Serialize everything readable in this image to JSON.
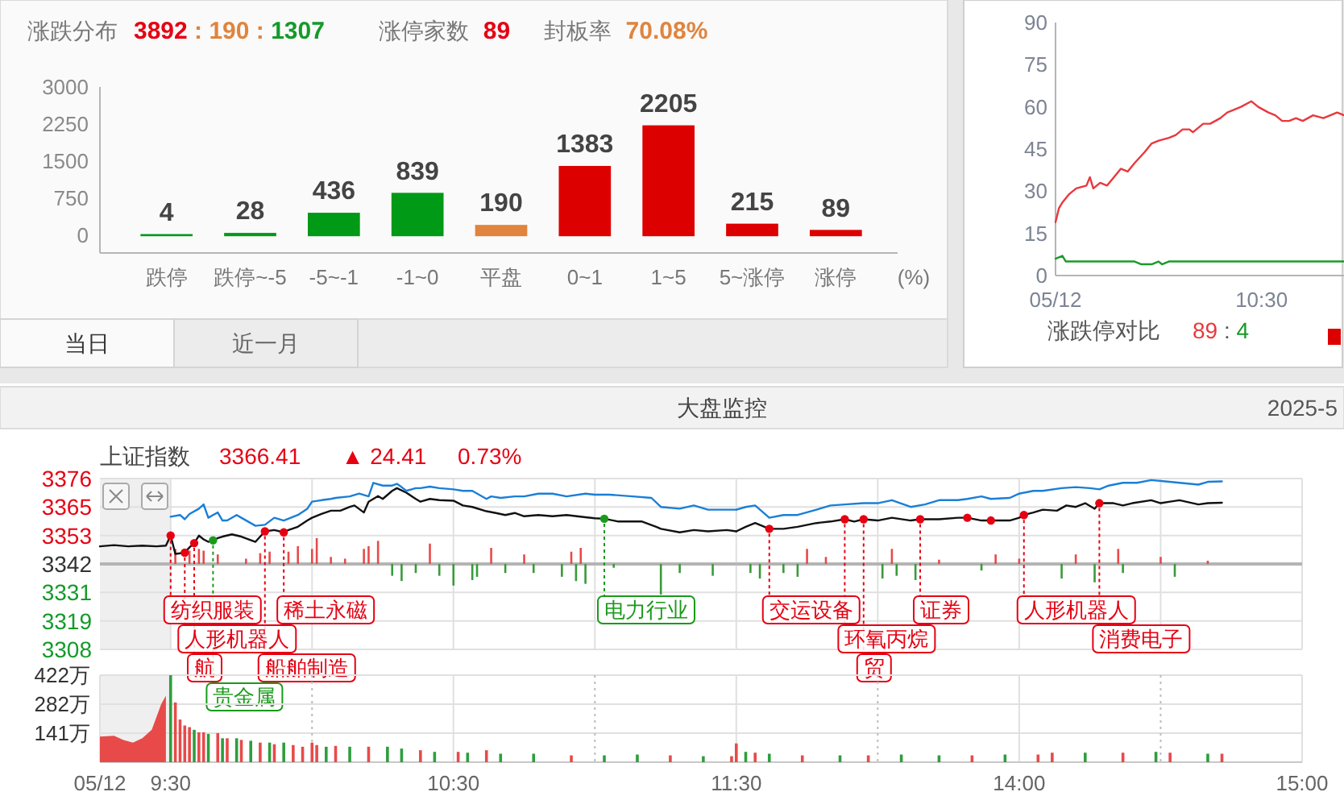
{
  "chart_data": [
    {
      "type": "bar",
      "title": "涨跌分布",
      "subtitle": "3892 : 190 : 1307",
      "annotations": [
        "涨停家数",
        "89",
        "封板率",
        "70.08%"
      ],
      "xlabel": "(%)",
      "categories": [
        "跌停",
        "跌停~-5",
        "-5~-1",
        "-1~0",
        "平盘",
        "0~1",
        "1~5",
        "5~涨停",
        "涨停"
      ],
      "values": [
        4,
        28,
        436,
        839,
        190,
        1383,
        2205,
        215,
        89
      ],
      "colors": [
        "#009a17",
        "#009a17",
        "#009a17",
        "#009a17",
        "#e0843e",
        "#dd0000",
        "#dd0000",
        "#dd0000",
        "#dd0000"
      ],
      "ylim": [
        0,
        3000
      ],
      "yticks": [
        0,
        750,
        1500,
        2250,
        3000
      ],
      "data_labels": true
    },
    {
      "type": "line",
      "title": "涨跌停对比",
      "annotations": [
        "89 : 4"
      ],
      "xlim": [
        "2025-05-12T09:30",
        "2025-05-12T10:54"
      ],
      "xticks": [
        {
          "value": "2025-05-12T09:30",
          "label": "05/12"
        },
        {
          "value": "2025-05-12T10:30",
          "label": "10:30"
        }
      ],
      "ylim": [
        0,
        90
      ],
      "yticks": [
        0,
        15,
        30,
        45,
        60,
        75,
        90
      ],
      "series": [
        {
          "color": "#e8383d",
          "x": [
            "2025-05-12T09:30",
            "2025-05-12T09:31",
            "2025-05-12T09:32",
            "2025-05-12T09:34",
            "2025-05-12T09:36",
            "2025-05-12T09:39",
            "2025-05-12T09:40",
            "2025-05-12T09:41",
            "2025-05-12T09:43",
            "2025-05-12T09:45",
            "2025-05-12T09:47",
            "2025-05-12T09:49",
            "2025-05-12T09:51",
            "2025-05-12T09:53",
            "2025-05-12T09:56",
            "2025-05-12T09:58",
            "2025-05-12T10:00",
            "2025-05-12T10:03",
            "2025-05-12T10:05",
            "2025-05-12T10:07",
            "2025-05-12T10:09",
            "2025-05-12T10:10",
            "2025-05-12T10:13",
            "2025-05-12T10:15",
            "2025-05-12T10:18",
            "2025-05-12T10:20",
            "2025-05-12T10:22",
            "2025-05-12T10:24",
            "2025-05-12T10:27",
            "2025-05-12T10:29",
            "2025-05-12T10:32",
            "2025-05-12T10:34",
            "2025-05-12T10:36",
            "2025-05-12T10:38",
            "2025-05-12T10:40",
            "2025-05-12T10:42",
            "2025-05-12T10:45",
            "2025-05-12T10:48",
            "2025-05-12T10:50",
            "2025-05-12T10:52",
            "2025-05-12T10:54"
          ],
          "values": [
            19,
            24,
            26,
            29,
            31,
            32,
            35,
            31,
            33,
            32,
            35,
            38,
            37,
            40,
            44,
            47,
            48,
            49,
            50,
            52,
            52,
            51,
            54,
            54,
            56,
            58,
            59,
            60,
            62,
            60,
            58,
            57,
            55,
            55,
            56,
            55,
            57,
            56,
            57,
            58,
            57
          ]
        },
        {
          "color": "#1a9a2a",
          "x": [
            "2025-05-12T09:30",
            "2025-05-12T09:32",
            "2025-05-12T09:33",
            "2025-05-12T09:53",
            "2025-05-12T09:55",
            "2025-05-12T09:58",
            "2025-05-12T10:00",
            "2025-05-12T10:01",
            "2025-05-12T10:03",
            "2025-05-12T10:54"
          ],
          "values": [
            6,
            7,
            5,
            5,
            4,
            4,
            5,
            4,
            5,
            5
          ]
        }
      ]
    },
    {
      "type": "other",
      "annotations": [
        "当日",
        "近一月"
      ]
    },
    {
      "type": "line",
      "title": "大盘监控",
      "subtitle": "上证指数",
      "annotations": [
        "3366.41",
        "▲ 24.41",
        "0.73%",
        "2025-5",
        {
          "text": "纺织服装",
          "x": "2025-05-12T09:30",
          "y": 3353.3
        },
        {
          "text": "人形机器人",
          "x": "2025-05-12T09:33",
          "y": 3346.5
        },
        {
          "text": "航",
          "x": "2025-05-12T09:35",
          "y": 3350.3
        },
        {
          "text": "贵金属",
          "x": "2025-05-12T09:39",
          "y": 3351.4
        },
        {
          "text": "船舶制造",
          "x": "2025-05-12T09:50",
          "y": 3355
        },
        {
          "text": "稀土永磁",
          "x": "2025-05-12T09:54",
          "y": 3354.6
        },
        {
          "text": "电力行业",
          "x": "2025-05-12T11:02",
          "y": 3360
        }
      ],
      "xlim": [
        "2025-05-12T09:15",
        "2025-05-12T11:30"
      ],
      "xticks": [
        "2025-05-12T09:30",
        "2025-05-12T10:00",
        "2025-05-12T10:30",
        "2025-05-12T11:00",
        "2025-05-12T11:30"
      ],
      "ylim": [
        3308,
        3376
      ],
      "yticks": [
        3376,
        {
          "value": 3364.67,
          "label": "3365"
        },
        {
          "value": 3353.33,
          "label": "3353"
        },
        3342,
        {
          "value": 3330.67,
          "label": "3331"
        },
        {
          "value": 3319.33,
          "label": "3319"
        },
        3308
      ],
      "grid": true,
      "tick_labels": "y",
      "ref_lines": [
        {
          "axis": "y",
          "value": 3342,
          "color": "#b4b4b4"
        }
      ],
      "bands": [
        {
          "axis": "x",
          "from": "2025-05-12T09:15",
          "to": "2025-05-12T09:30",
          "color": "#efefef"
        }
      ],
      "series": [
        {
          "type": "bar",
          "x": [
            "2025-05-12T09:31",
            "2025-05-12T09:34",
            "2025-05-12T09:36",
            "2025-05-12T09:37",
            "2025-05-12T09:40",
            "2025-05-12T09:46",
            "2025-05-12T09:49",
            "2025-05-12T09:51",
            "2025-05-12T09:55",
            "2025-05-12T09:57",
            "2025-05-12T10:00",
            "2025-05-12T10:01",
            "2025-05-12T10:04",
            "2025-05-12T10:07",
            "2025-05-12T10:11",
            "2025-05-12T10:12",
            "2025-05-12T10:14",
            "2025-05-12T10:17",
            "2025-05-12T10:19",
            "2025-05-12T10:22",
            "2025-05-12T10:25",
            "2025-05-12T10:27",
            "2025-05-12T10:30",
            "2025-05-12T10:34",
            "2025-05-12T10:35",
            "2025-05-12T10:38",
            "2025-05-12T10:41",
            "2025-05-12T10:45",
            "2025-05-12T10:47",
            "2025-05-12T10:53",
            "2025-05-12T10:55",
            "2025-05-12T10:56",
            "2025-05-12T10:57",
            "2025-05-12T10:58",
            "2025-05-12T11:04",
            "2025-05-12T11:14",
            "2025-05-12T11:18",
            "2025-05-12T11:25"
          ],
          "base": [
            3342,
            3342,
            3342,
            3342,
            3342,
            3342,
            3342,
            3342,
            3342,
            3342,
            3342,
            3342,
            3342,
            3342,
            3342,
            3342,
            3342,
            3342,
            3342,
            3342,
            3342,
            3342,
            3342,
            3342,
            3342,
            3342,
            3342,
            3342,
            3342,
            3342,
            3342,
            3342,
            3342,
            3342,
            3342,
            3342,
            3342,
            3342
          ],
          "values": [
            6,
            5.3,
            6,
            5.3,
            3.8,
            2.1,
            4.3,
            4.9,
            4.9,
            7.1,
            6,
            10.3,
            2.8,
            2.1,
            6,
            7.1,
            9.2,
            -4.7,
            -6.8,
            -3.6,
            8.1,
            -4.7,
            -8.6,
            -6.4,
            -5.1,
            6.4,
            -3.6,
            3.8,
            -3.6,
            -5.1,
            4.9,
            -6.8,
            6.4,
            -7.9,
            -1.5,
            -12.2,
            -3.6,
            -4.7
          ],
          "colors": [
            "#e84a4a",
            "#e84a4a",
            "#e84a4a",
            "#e84a4a",
            "#e84a4a",
            "#e84a4a",
            "#e84a4a",
            "#e84a4a",
            "#e84a4a",
            "#e84a4a",
            "#e84a4a",
            "#e84a4a",
            "#e84a4a",
            "#e84a4a",
            "#e84a4a",
            "#e84a4a",
            "#e84a4a",
            "#3a9a3a",
            "#3a9a3a",
            "#3a9a3a",
            "#e84a4a",
            "#3a9a3a",
            "#3a9a3a",
            "#3a9a3a",
            "#3a9a3a",
            "#e84a4a",
            "#3a9a3a",
            "#e84a4a",
            "#3a9a3a",
            "#3a9a3a",
            "#e84a4a",
            "#3a9a3a",
            "#e84a4a",
            "#3a9a3a",
            "#3a9a3a",
            "#3a9a3a",
            "#3a9a3a",
            "#3a9a3a"
          ]
        },
        {
          "color": "#111111",
          "x": [
            "2025-05-12T09:15",
            "2025-05-12T09:18",
            "2025-05-12T09:21",
            "2025-05-12T09:24",
            "2025-05-12T09:27",
            "2025-05-12T09:29",
            "2025-05-12T09:30",
            "2025-05-12T09:31",
            "2025-05-12T09:33",
            "2025-05-12T09:34",
            "2025-05-12T09:35",
            "2025-05-12T09:36",
            "2025-05-12T09:37",
            "2025-05-12T09:38",
            "2025-05-12T09:39",
            "2025-05-12T09:40",
            "2025-05-12T09:41",
            "2025-05-12T09:43",
            "2025-05-12T09:45",
            "2025-05-12T09:48",
            "2025-05-12T09:49",
            "2025-05-12T09:50",
            "2025-05-12T09:52",
            "2025-05-12T09:54",
            "2025-05-12T09:55",
            "2025-05-12T09:57",
            "2025-05-12T09:59",
            "2025-05-12T10:00",
            "2025-05-12T10:02",
            "2025-05-12T10:04",
            "2025-05-12T10:06",
            "2025-05-12T10:08",
            "2025-05-12T10:09",
            "2025-05-12T10:11",
            "2025-05-12T10:12",
            "2025-05-12T10:14",
            "2025-05-12T10:15",
            "2025-05-12T10:17",
            "2025-05-12T10:18",
            "2025-05-12T10:20",
            "2025-05-12T10:22",
            "2025-05-12T10:23",
            "2025-05-12T10:25",
            "2025-05-12T10:27",
            "2025-05-12T10:30",
            "2025-05-12T10:32",
            "2025-05-12T10:34",
            "2025-05-12T10:37",
            "2025-05-12T10:39",
            "2025-05-12T10:41",
            "2025-05-12T10:43",
            "2025-05-12T10:45",
            "2025-05-12T10:48",
            "2025-05-12T10:51",
            "2025-05-12T10:54",
            "2025-05-12T10:58",
            "2025-05-12T11:00",
            "2025-05-12T11:02",
            "2025-05-12T11:05",
            "2025-05-12T11:10",
            "2025-05-12T11:13",
            "2025-05-12T11:14",
            "2025-05-12T11:18",
            "2025-05-12T11:21",
            "2025-05-12T11:24",
            "2025-05-12T11:28",
            "2025-05-12T11:30"
          ],
          "values": [
            3349,
            3349.5,
            3349,
            3349.3,
            3349,
            3349.3,
            3353.3,
            3346,
            3346.5,
            3348.6,
            3350.3,
            3353.3,
            3351.8,
            3350.8,
            3351.4,
            3352.3,
            3352.9,
            3353.8,
            3352.9,
            3350.8,
            3352.9,
            3355,
            3355.5,
            3354.6,
            3355.5,
            3356.8,
            3359.3,
            3360.4,
            3361.9,
            3363.2,
            3363.2,
            3364.7,
            3365.3,
            3362.5,
            3366.8,
            3369,
            3367.9,
            3371.1,
            3372.2,
            3370.4,
            3367.9,
            3366.8,
            3367.9,
            3367.4,
            3367.2,
            3365.3,
            3364.7,
            3363,
            3362.3,
            3361.5,
            3362.3,
            3361,
            3361.5,
            3361,
            3361.5,
            3360.6,
            3360.2,
            3360,
            3358.9,
            3358.9,
            3356.8,
            3356,
            3354.6,
            3355.5,
            3355,
            3355.5,
            3355
          ]
        },
        {
          "color": "#1a7fd6",
          "x": [
            "2025-05-12T09:30",
            "2025-05-12T09:32",
            "2025-05-12T09:33",
            "2025-05-12T09:34",
            "2025-05-12T09:36",
            "2025-05-12T09:37",
            "2025-05-12T09:38",
            "2025-05-12T09:39",
            "2025-05-12T09:40",
            "2025-05-12T09:41",
            "2025-05-12T09:42",
            "2025-05-12T09:44",
            "2025-05-12T09:45",
            "2025-05-12T09:48",
            "2025-05-12T09:50",
            "2025-05-12T09:52",
            "2025-05-12T09:54",
            "2025-05-12T09:57",
            "2025-05-12T09:59",
            "2025-05-12T10:00",
            "2025-05-12T10:02",
            "2025-05-12T10:04",
            "2025-05-12T10:05",
            "2025-05-12T10:08",
            "2025-05-12T10:10",
            "2025-05-12T10:12",
            "2025-05-12T10:13",
            "2025-05-12T10:15",
            "2025-05-12T10:17",
            "2025-05-12T10:18",
            "2025-05-12T10:19",
            "2025-05-12T10:20",
            "2025-05-12T10:22",
            "2025-05-12T10:23",
            "2025-05-12T10:25",
            "2025-05-12T10:27",
            "2025-05-12T10:30",
            "2025-05-12T10:32",
            "2025-05-12T10:34",
            "2025-05-12T10:37",
            "2025-05-12T10:38",
            "2025-05-12T10:40",
            "2025-05-12T10:43",
            "2025-05-12T10:45",
            "2025-05-12T10:48",
            "2025-05-12T10:51",
            "2025-05-12T10:54",
            "2025-05-12T10:58",
            "2025-05-12T11:00",
            "2025-05-12T11:03",
            "2025-05-12T11:08",
            "2025-05-12T11:12",
            "2025-05-12T11:14",
            "2025-05-12T11:18",
            "2025-05-12T11:21",
            "2025-05-12T11:24",
            "2025-05-12T11:28",
            "2025-05-12T11:30"
          ],
          "values": [
            3360.8,
            3361.5,
            3359.8,
            3361.9,
            3364,
            3365.7,
            3360.4,
            3361.5,
            3362.5,
            3359.3,
            3359.3,
            3361.5,
            3360.4,
            3357.2,
            3357.6,
            3360.4,
            3359.3,
            3361.5,
            3364,
            3366.8,
            3367.4,
            3367.9,
            3368.3,
            3368.9,
            3370,
            3368.9,
            3374.3,
            3373.2,
            3373.2,
            3373.9,
            3372.6,
            3371.1,
            3372.2,
            3372.2,
            3372.8,
            3372.2,
            3371.7,
            3371.1,
            3371.1,
            3367.9,
            3368.9,
            3368.3,
            3368.9,
            3368.9,
            3370,
            3370,
            3368.9,
            3370,
            3369.6,
            3369.6,
            3368.9,
            3368.3,
            3364.7,
            3364,
            3365.3,
            3363.6,
            3363.6,
            3363.6
          ]
        },
        {
          "type": "scatter",
          "marker": "circle",
          "x": [
            "2025-05-12T09:30",
            "2025-05-12T09:33",
            "2025-05-12T09:35",
            "2025-05-12T09:39",
            "2025-05-12T09:50",
            "2025-05-12T09:54",
            "2025-05-12T11:02"
          ],
          "values": [
            3353.3,
            3346.5,
            3350.3,
            3351.4,
            3355,
            3354.6,
            3360
          ],
          "colors": [
            "#e60012",
            "#e60012",
            "#e60012",
            "#1a9a1a",
            "#e60012",
            "#e60012",
            "#1a9a1a"
          ]
        }
      ]
    },
    {
      "type": "line",
      "annotations": [
        {
          "text": "交运设备",
          "x": "2025-05-12T13:07",
          "y": 3356
        },
        {
          "text": "环氧丙烷",
          "x": "2025-05-12T13:23",
          "y": 3359.8
        },
        {
          "text": "贸",
          "x": "2025-05-12T13:27",
          "y": 3359.8
        },
        {
          "text": "证券",
          "x": "2025-05-12T13:39",
          "y": 3359.8
        },
        {
          "text": "人形机器人",
          "x": "2025-05-12T14:01",
          "y": 3361.5
        },
        {
          "text": "消费电子",
          "x": "2025-05-12T14:17",
          "y": 3366.2
        }
      ],
      "xlim": [
        "2025-05-12T13:00",
        "2025-05-12T15:00"
      ],
      "xticks": [
        "2025-05-12T13:30",
        "2025-05-12T14:00",
        "2025-05-12T14:30",
        "2025-05-12T15:00"
      ],
      "ylim": [
        3308,
        3376
      ],
      "yticks": [
        3376,
        3364.67,
        3353.33,
        3342,
        3330.67,
        3319.33,
        3308
      ],
      "grid": true,
      "tick_labels": false,
      "ref_lines": [
        {
          "axis": "y",
          "value": 3342,
          "color": "#b4b4b4"
        }
      ],
      "series": [
        {
          "type": "bar",
          "x": [
            "2025-05-12T13:03",
            "2025-05-12T13:05",
            "2025-05-12T13:10",
            "2025-05-12T13:13",
            "2025-05-12T13:15",
            "2025-05-12T13:19",
            "2025-05-12T13:31",
            "2025-05-12T13:33",
            "2025-05-12T13:34",
            "2025-05-12T13:38",
            "2025-05-12T13:43",
            "2025-05-12T13:52",
            "2025-05-12T13:55",
            "2025-05-12T14:00",
            "2025-05-12T14:09",
            "2025-05-12T14:12",
            "2025-05-12T14:16",
            "2025-05-12T14:21",
            "2025-05-12T14:22",
            "2025-05-12T14:30",
            "2025-05-12T14:33",
            "2025-05-12T14:40"
          ],
          "base": [
            3342,
            3342,
            3342,
            3342,
            3342,
            3342,
            3342,
            3342,
            3342,
            3342,
            3342,
            3342,
            3342,
            3342,
            3342,
            3342,
            3342,
            3342,
            3342,
            3342,
            3342,
            3342
          ],
          "values": [
            -3.6,
            -5.8,
            -3.6,
            -5.1,
            6,
            2.8,
            -5.8,
            6,
            -4.7,
            -6.4,
            1.7,
            -2.6,
            3.8,
            2.1,
            -5.8,
            3.8,
            -7.3,
            6,
            -3.6,
            2.8,
            -5.1,
            1.3
          ],
          "colors": [
            "#3a9a3a",
            "#3a9a3a",
            "#3a9a3a",
            "#3a9a3a",
            "#e84a4a",
            "#e84a4a",
            "#3a9a3a",
            "#e84a4a",
            "#3a9a3a",
            "#3a9a3a",
            "#e84a4a",
            "#3a9a3a",
            "#e84a4a",
            "#e84a4a",
            "#3a9a3a",
            "#e84a4a",
            "#3a9a3a",
            "#e84a4a",
            "#3a9a3a",
            "#e84a4a",
            "#3a9a3a",
            "#e84a4a"
          ]
        },
        {
          "color": "#111111",
          "x": [
            "2025-05-12T13:00",
            "2025-05-12T13:02",
            "2025-05-12T13:04",
            "2025-05-12T13:07",
            "2025-05-12T13:10",
            "2025-05-12T13:13",
            "2025-05-12T13:17",
            "2025-05-12T13:20",
            "2025-05-12T13:23",
            "2025-05-12T13:25",
            "2025-05-12T13:27",
            "2025-05-12T13:30",
            "2025-05-12T13:33",
            "2025-05-12T13:37",
            "2025-05-12T13:39",
            "2025-05-12T13:43",
            "2025-05-12T13:47",
            "2025-05-12T13:49",
            "2025-05-12T13:52",
            "2025-05-12T13:54",
            "2025-05-12T13:58",
            "2025-05-12T14:00",
            "2025-05-12T14:01",
            "2025-05-12T14:03",
            "2025-05-12T14:05",
            "2025-05-12T14:08",
            "2025-05-12T14:10",
            "2025-05-12T14:12",
            "2025-05-12T14:14",
            "2025-05-12T14:16",
            "2025-05-12T14:17",
            "2025-05-12T14:20",
            "2025-05-12T14:22",
            "2025-05-12T14:24",
            "2025-05-12T14:28",
            "2025-05-12T14:30",
            "2025-05-12T14:32",
            "2025-05-12T14:34",
            "2025-05-12T14:38",
            "2025-05-12T14:40",
            "2025-05-12T14:43"
          ],
          "values": [
            3355,
            3356.8,
            3358.3,
            3356,
            3356,
            3356.8,
            3358.3,
            3358.9,
            3359.8,
            3358.9,
            3359.8,
            3359.3,
            3360.4,
            3359.3,
            3359.8,
            3359.8,
            3360.4,
            3360.4,
            3359.3,
            3359.3,
            3359.3,
            3360.4,
            3361.5,
            3362.5,
            3363.6,
            3363.2,
            3365.3,
            3364.7,
            3366.2,
            3364,
            3366.2,
            3366.2,
            3365.3,
            3366.2,
            3367.4,
            3366.2,
            3366.8,
            3367.4,
            3365.7,
            3366.2,
            3366.4
          ]
        },
        {
          "color": "#1a7fd6",
          "x": [
            "2025-05-12T13:00",
            "2025-05-12T13:02",
            "2025-05-12T13:04",
            "2025-05-12T13:07",
            "2025-05-12T13:10",
            "2025-05-12T13:13",
            "2025-05-12T13:17",
            "2025-05-12T13:20",
            "2025-05-12T13:23",
            "2025-05-12T13:27",
            "2025-05-12T13:30",
            "2025-05-12T13:33",
            "2025-05-12T13:37",
            "2025-05-12T13:40",
            "2025-05-12T13:43",
            "2025-05-12T13:47",
            "2025-05-12T13:49",
            "2025-05-12T13:52",
            "2025-05-12T13:54",
            "2025-05-12T13:58",
            "2025-05-12T14:00",
            "2025-05-12T14:03",
            "2025-05-12T14:05",
            "2025-05-12T14:09",
            "2025-05-12T14:12",
            "2025-05-12T14:15",
            "2025-05-12T14:17",
            "2025-05-12T14:19",
            "2025-05-12T14:22",
            "2025-05-12T14:25",
            "2025-05-12T14:28",
            "2025-05-12T14:31",
            "2025-05-12T14:34",
            "2025-05-12T14:38",
            "2025-05-12T14:40",
            "2025-05-12T14:43"
          ],
          "values": [
            3363.6,
            3364.7,
            3365.3,
            3360.4,
            3361.5,
            3361.5,
            3363.6,
            3365.3,
            3365.7,
            3366.2,
            3366.2,
            3367.4,
            3364.7,
            3365.7,
            3367.4,
            3367.4,
            3367.9,
            3368.9,
            3367.9,
            3368.3,
            3370,
            3371.1,
            3371.1,
            3372.2,
            3372.6,
            3372.2,
            3371.7,
            3373.2,
            3374.3,
            3374.3,
            3375.4,
            3374.9,
            3374.3,
            3373.6,
            3374.7,
            3374.9
          ]
        },
        {
          "type": "scatter",
          "marker": "circle",
          "x": [
            "2025-05-12T13:07",
            "2025-05-12T13:23",
            "2025-05-12T13:27",
            "2025-05-12T13:39",
            "2025-05-12T14:01",
            "2025-05-12T14:17",
            "2025-05-12T13:49",
            "2025-05-12T13:54"
          ],
          "values": [
            3356,
            3359.8,
            3359.8,
            3359.8,
            3361.5,
            3366.2,
            3360.4,
            3359.3
          ],
          "colors": [
            "#e60012",
            "#e60012",
            "#e60012",
            "#e60012",
            "#e60012",
            "#e60012",
            "#e60012",
            "#e60012"
          ]
        }
      ]
    },
    {
      "type": "bar",
      "xlim": [
        "2025-05-12T09:15",
        "2025-05-12T11:30"
      ],
      "xticks": [
        {
          "value": "2025-05-12T09:15",
          "label": "05/12"
        },
        {
          "value": "2025-05-12T09:30",
          "label": "9:30"
        },
        {
          "value": "2025-05-12T10:00",
          "label": null
        },
        {
          "value": "2025-05-12T10:30",
          "label": "10:30"
        },
        {
          "value": "2025-05-12T11:00",
          "label": null
        },
        {
          "value": "2025-05-12T11:30",
          "label": "11:30"
        }
      ],
      "ylim": [
        0,
        422.4
      ],
      "yticks": [
        {
          "value": 140.8,
          "label": "141万"
        },
        {
          "value": 281.6,
          "label": "282万"
        },
        {
          "value": 422.4,
          "label": "422万"
        }
      ],
      "grid": true,
      "bands": [
        {
          "axis": "x",
          "from": "2025-05-12T09:15",
          "to": "2025-05-12T09:30",
          "color": "#efefef"
        }
      ],
      "series": [
        {
          "type": "area",
          "color": "#e84a4a",
          "x": [
            "2025-05-12T09:15",
            "2025-05-12T09:18",
            "2025-05-12T09:20",
            "2025-05-12T09:22",
            "2025-05-12T09:24",
            "2025-05-12T09:26",
            "2025-05-12T09:27",
            "2025-05-12T09:28",
            "2025-05-12T09:29"
          ],
          "values": [
            124,
            128,
            108,
            95,
            116,
            157,
            219,
            282,
            323
          ]
        },
        {
          "x": [
            "2025-05-12T09:30",
            "2025-05-12T09:31",
            "2025-05-12T09:32",
            "2025-05-12T09:33",
            "2025-05-12T09:34",
            "2025-05-12T09:35",
            "2025-05-12T09:36",
            "2025-05-12T09:37",
            "2025-05-12T09:38",
            "2025-05-12T09:40",
            "2025-05-12T09:41",
            "2025-05-12T09:42",
            "2025-05-12T09:44",
            "2025-05-12T09:45",
            "2025-05-12T09:47",
            "2025-05-12T09:49",
            "2025-05-12T09:51",
            "2025-05-12T09:52",
            "2025-05-12T09:54",
            "2025-05-12T09:56",
            "2025-05-12T09:58",
            "2025-05-12T10:00",
            "2025-05-12T10:01",
            "2025-05-12T10:03",
            "2025-05-12T10:05",
            "2025-05-12T10:08",
            "2025-05-12T10:12",
            "2025-05-12T10:16",
            "2025-05-12T10:19",
            "2025-05-12T10:23",
            "2025-05-12T10:26",
            "2025-05-12T10:31",
            "2025-05-12T10:33",
            "2025-05-12T10:37",
            "2025-05-12T10:40",
            "2025-05-12T10:47",
            "2025-05-12T10:55",
            "2025-05-12T11:02",
            "2025-05-12T11:09",
            "2025-05-12T11:16",
            "2025-05-12T11:23",
            "2025-05-12T11:29"
          ],
          "values": [
            422,
            290,
            207,
            178,
            170,
            157,
            145,
            145,
            137,
            141,
            116,
            116,
            116,
            108,
            104,
            95,
            95,
            87,
            95,
            83,
            75,
            95,
            83,
            75,
            79,
            75,
            75,
            75,
            66,
            58,
            50,
            50,
            46,
            58,
            41,
            41,
            33,
            33,
            37,
            33,
            29,
            29
          ],
          "colors": [
            "#2e9e3e",
            "#e84a4a",
            "#e84a4a",
            "#e84a4a",
            "#e84a4a",
            "#2e9e3e",
            "#e84a4a",
            "#e84a4a",
            "#2e9e3e",
            "#e84a4a",
            "#2e9e3e",
            "#e84a4a",
            "#2e9e3e",
            "#e84a4a",
            "#2e9e3e",
            "#e84a4a",
            "#2e9e3e",
            "#e84a4a",
            "#2e9e3e",
            "#e84a4a",
            "#e84a4a",
            "#e84a4a",
            "#e84a4a",
            "#2e9e3e",
            "#e84a4a",
            "#2e9e3e",
            "#e84a4a",
            "#2e9e3e",
            "#2e9e3e",
            "#e84a4a",
            "#2e9e3e",
            "#e84a4a",
            "#2e9e3e",
            "#e84a4a",
            "#2e9e3e",
            "#2e9e3e",
            "#e84a4a",
            "#2e9e3e",
            "#2e9e3e",
            "#e84a4a",
            "#2e9e3e",
            "#e84a4a"
          ]
        }
      ]
    },
    {
      "type": "bar",
      "xlim": [
        "2025-05-12T13:00",
        "2025-05-12T15:00"
      ],
      "xticks": [
        {
          "value": "2025-05-12T13:30",
          "label": null
        },
        {
          "value": "2025-05-12T14:00",
          "label": "14:00"
        },
        {
          "value": "2025-05-12T14:30",
          "label": null
        },
        {
          "value": "2025-05-12T15:00",
          "label": "15:00"
        }
      ],
      "ylim": [
        0,
        422.4
      ],
      "yticks": [
        140.8,
        281.6,
        422.4
      ],
      "grid": true,
      "tick_labels": "x",
      "series": [
        {
          "x": [
            "2025-05-12T13:00",
            "2025-05-12T13:02",
            "2025-05-12T13:04",
            "2025-05-12T13:07",
            "2025-05-12T13:14",
            "2025-05-12T13:22",
            "2025-05-12T13:28",
            "2025-05-12T13:35",
            "2025-05-12T13:43",
            "2025-05-12T13:50",
            "2025-05-12T13:57",
            "2025-05-12T14:04",
            "2025-05-12T14:07",
            "2025-05-12T14:14",
            "2025-05-12T14:22",
            "2025-05-12T14:29",
            "2025-05-12T14:32",
            "2025-05-12T14:40",
            "2025-05-12T14:43"
          ],
          "values": [
            91,
            50,
            46,
            41,
            33,
            33,
            33,
            37,
            33,
            33,
            37,
            37,
            46,
            46,
            46,
            50,
            46,
            41,
            41
          ],
          "colors": [
            "#e84a4a",
            "#2e9e3e",
            "#e84a4a",
            "#2e9e3e",
            "#e84a4a",
            "#2e9e3e",
            "#e84a4a",
            "#2e9e3e",
            "#2e9e3e",
            "#e84a4a",
            "#2e9e3e",
            "#e84a4a",
            "#e84a4a",
            "#2e9e3e",
            "#e84a4a",
            "#2e9e3e",
            "#e84a4a",
            "#2e9e3e",
            "#e84a4a"
          ]
        }
      ]
    }
  ]
}
